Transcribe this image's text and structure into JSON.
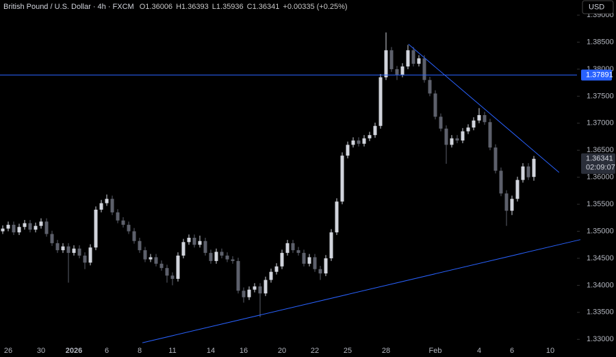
{
  "chart_data": {
    "type": "candlestick",
    "title": "British Pound / U.S. Dollar · 4h · FXCM",
    "ohlc_legend": [
      "O1.36006",
      "H1.36393",
      "L1.35936",
      "C1.36341",
      "+0.00335 (+0.25%)"
    ],
    "currency": "USD",
    "categories": [
      null,
      "26",
      null,
      null,
      null,
      null,
      null,
      "30",
      null,
      null,
      null,
      null,
      null,
      "2026",
      null,
      null,
      null,
      null,
      null,
      "6",
      null,
      null,
      null,
      null,
      null,
      "8",
      null,
      null,
      null,
      null,
      null,
      "11",
      null,
      null,
      null,
      null,
      null,
      null,
      "14",
      null,
      null,
      null,
      null,
      null,
      "16",
      null,
      null,
      null,
      null,
      null,
      null,
      "20",
      null,
      null,
      null,
      null,
      null,
      "22",
      null,
      null,
      null,
      null,
      null,
      "25",
      null,
      null,
      null,
      null,
      null,
      null,
      "28",
      null,
      null,
      null,
      null,
      null,
      null,
      null,
      null,
      "Feb",
      null,
      null,
      null,
      null,
      null,
      null,
      null,
      "4",
      null,
      null,
      null,
      null,
      null,
      "6",
      null,
      null,
      null,
      null,
      null,
      null,
      "10"
    ],
    "open": [
      1.35,
      1.3505,
      1.3512,
      1.3498,
      1.3508,
      1.3515,
      1.3503,
      1.351,
      1.3518,
      1.3495,
      1.3478,
      1.3465,
      1.3472,
      1.346,
      1.3468,
      1.3455,
      1.3442,
      1.347,
      1.354,
      1.3552,
      1.356,
      1.3535,
      1.352,
      1.3512,
      1.35,
      1.3482,
      1.3465,
      1.3448,
      1.3452,
      1.344,
      1.3432,
      1.3418,
      1.3412,
      1.3455,
      1.348,
      1.3488,
      1.3475,
      1.3482,
      1.346,
      1.3445,
      1.3462,
      1.3455,
      1.3448,
      1.3445,
      1.339,
      1.3378,
      1.3392,
      1.3398,
      1.3385,
      1.341,
      1.3425,
      1.3435,
      1.346,
      1.3478,
      1.3465,
      1.346,
      1.344,
      1.3452,
      1.343,
      1.3422,
      1.345,
      1.3498,
      1.3555,
      1.364,
      1.366,
      1.3668,
      1.3662,
      1.3672,
      1.3678,
      1.3695,
      1.3785,
      1.3835,
      1.38,
      1.379,
      1.3805,
      1.3835,
      1.381,
      1.382,
      1.378,
      1.3755,
      1.3712,
      1.369,
      1.366,
      1.3672,
      1.3668,
      1.3685,
      1.3692,
      1.3705,
      1.3715,
      1.3702,
      1.3655,
      1.3612,
      1.357,
      1.3538,
      1.356,
      1.3595,
      1.362,
      1.36006,
      null,
      null,
      null
    ],
    "high": [
      1.3511,
      1.3518,
      1.3518,
      1.3514,
      1.3521,
      1.3521,
      1.3516,
      1.3524,
      1.3524,
      1.3501,
      1.3484,
      1.3478,
      1.3478,
      1.3474,
      1.3474,
      1.3461,
      1.3476,
      1.3546,
      1.3558,
      1.3568,
      1.3566,
      1.3541,
      1.3526,
      1.3518,
      1.3506,
      1.3488,
      1.3471,
      1.3458,
      1.3458,
      1.3446,
      1.3438,
      1.3424,
      1.3461,
      1.3486,
      1.3494,
      1.3494,
      1.3492,
      1.3488,
      1.3466,
      1.3468,
      1.3468,
      1.3461,
      1.3454,
      1.3451,
      1.3396,
      1.3398,
      1.3404,
      1.3404,
      1.3416,
      1.3431,
      1.3441,
      1.3466,
      1.3484,
      1.3484,
      1.3471,
      1.3466,
      1.3458,
      1.3458,
      1.3436,
      1.3456,
      1.3504,
      1.3561,
      1.3646,
      1.3666,
      1.3674,
      1.3674,
      1.3678,
      1.3684,
      1.3701,
      1.3791,
      1.3868,
      1.3841,
      1.3806,
      1.3811,
      1.3845,
      1.3841,
      1.3826,
      1.3826,
      1.3786,
      1.3761,
      1.3718,
      1.3696,
      1.3678,
      1.3678,
      1.3691,
      1.3698,
      1.3711,
      1.3728,
      1.3721,
      1.3708,
      1.3661,
      1.3618,
      1.3576,
      1.3566,
      1.3601,
      1.3626,
      1.3626,
      1.36393,
      null,
      null,
      null
    ],
    "low": [
      1.3495,
      1.35,
      1.3493,
      1.3493,
      1.3503,
      1.3498,
      1.3498,
      1.3505,
      1.349,
      1.3473,
      1.346,
      1.346,
      1.3405,
      1.3455,
      1.345,
      1.343,
      1.3437,
      1.3465,
      1.3535,
      1.3547,
      1.353,
      1.3515,
      1.3507,
      1.3495,
      1.3477,
      1.346,
      1.3443,
      1.3443,
      1.3435,
      1.3427,
      1.3405,
      1.34,
      1.3407,
      1.345,
      1.3475,
      1.347,
      1.347,
      1.3455,
      1.344,
      1.344,
      1.345,
      1.3443,
      1.344,
      1.3385,
      1.3368,
      1.3373,
      1.3387,
      1.3341,
      1.338,
      1.3405,
      1.342,
      1.343,
      1.3455,
      1.346,
      1.3455,
      1.3435,
      1.3435,
      1.3425,
      1.341,
      1.3417,
      1.3445,
      1.3493,
      1.355,
      1.3635,
      1.3655,
      1.3657,
      1.3657,
      1.3667,
      1.3673,
      1.369,
      1.378,
      1.3795,
      1.378,
      1.3785,
      1.38,
      1.3805,
      1.3805,
      1.3775,
      1.375,
      1.3707,
      1.3685,
      1.3625,
      1.3655,
      1.3663,
      1.3663,
      1.368,
      1.3687,
      1.37,
      1.3697,
      1.365,
      1.3607,
      1.3565,
      1.351,
      1.353,
      1.3555,
      1.359,
      1.3595,
      1.35936,
      null,
      null,
      null
    ],
    "close": [
      1.3505,
      1.3512,
      1.3498,
      1.3508,
      1.3515,
      1.3503,
      1.351,
      1.3518,
      1.3495,
      1.3478,
      1.3465,
      1.3472,
      1.346,
      1.3468,
      1.3455,
      1.3442,
      1.347,
      1.354,
      1.3552,
      1.356,
      1.3535,
      1.352,
      1.3512,
      1.35,
      1.3482,
      1.3465,
      1.3448,
      1.3452,
      1.344,
      1.3432,
      1.3418,
      1.3412,
      1.3455,
      1.348,
      1.3488,
      1.3475,
      1.3482,
      1.346,
      1.3445,
      1.3462,
      1.3455,
      1.3448,
      1.3445,
      1.339,
      1.3378,
      1.3392,
      1.3398,
      1.3385,
      1.341,
      1.3425,
      1.3435,
      1.346,
      1.3478,
      1.3465,
      1.346,
      1.344,
      1.3452,
      1.343,
      1.3422,
      1.345,
      1.3498,
      1.3555,
      1.364,
      1.366,
      1.3668,
      1.3662,
      1.3672,
      1.3678,
      1.3695,
      1.3785,
      1.3835,
      1.38,
      1.379,
      1.3805,
      1.3835,
      1.381,
      1.382,
      1.378,
      1.3755,
      1.3712,
      1.369,
      1.366,
      1.3672,
      1.3668,
      1.3685,
      1.3692,
      1.3705,
      1.3715,
      1.3702,
      1.3655,
      1.3612,
      1.357,
      1.3538,
      1.356,
      1.3595,
      1.362,
      1.36,
      1.36341,
      null,
      null,
      null
    ],
    "up_color": "#d1d4dc",
    "down_color": "#5d606b",
    "ylim": [
      1.3294,
      1.3928
    ],
    "yticks": [
      {
        "value": 1.33,
        "label": "1.33000"
      },
      {
        "value": 1.335,
        "label": "1.33500"
      },
      {
        "value": 1.34,
        "label": "1.34000"
      },
      {
        "value": 1.345,
        "label": "1.34500"
      },
      {
        "value": 1.35,
        "label": "1.35000"
      },
      {
        "value": 1.355,
        "label": "1.35500"
      },
      {
        "value": 1.36,
        "label": "1.36000"
      },
      {
        "value": 1.365,
        "label": "1.36500"
      },
      {
        "value": 1.37,
        "label": "1.37000"
      },
      {
        "value": 1.375,
        "label": "1.37500"
      },
      {
        "value": 1.38,
        "label": "1.38000"
      },
      {
        "value": 1.385,
        "label": "1.38500"
      },
      {
        "value": 1.39,
        "label": "1.39000"
      }
    ],
    "hline": {
      "value": 1.37891,
      "label": "1.37891",
      "color": "#2962ff"
    },
    "last_price": {
      "value": 1.36341,
      "label": "1.36341",
      "countdown": "02:09:07"
    },
    "trendlines": [
      {
        "x": [
          74.1,
          101.6
        ],
        "y": [
          1.38462,
          1.3609
        ],
        "color": "#2962ff"
      },
      {
        "x": [
          25.5,
          105.5
        ],
        "y": [
          1.32937,
          1.34846
        ],
        "color": "#2962ff"
      }
    ]
  }
}
